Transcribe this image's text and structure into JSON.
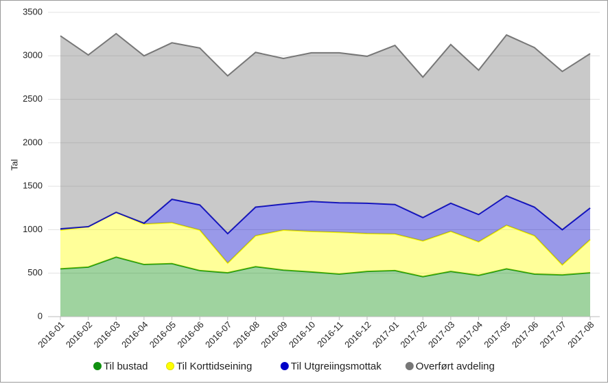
{
  "chart_data": {
    "type": "stacked-area",
    "y_label": "Tal",
    "categories": [
      "2016-01",
      "2016-02",
      "2016-03",
      "2016-04",
      "2016-05",
      "2016-06",
      "2016-07",
      "2016-08",
      "2016-09",
      "2016-10",
      "2016-11",
      "2016-12",
      "2017-01",
      "2017-02",
      "2017-03",
      "2017-04",
      "2017-05",
      "2017-06",
      "2017-07",
      "2017-08"
    ],
    "series": [
      {
        "name": "Til bustad",
        "color": "#109010",
        "values": [
          550,
          570,
          685,
          600,
          610,
          530,
          505,
          575,
          535,
          515,
          490,
          520,
          530,
          460,
          520,
          475,
          550,
          490,
          480,
          505
        ]
      },
      {
        "name": "Til Korttidseining",
        "color": "#ffff00",
        "values": [
          445,
          465,
          515,
          465,
          470,
          465,
          110,
          355,
          460,
          465,
          480,
          435,
          420,
          410,
          460,
          385,
          500,
          440,
          115,
          380
        ]
      },
      {
        "name": "Til Utgreiingsmottak",
        "color": "#0000c8",
        "values": [
          15,
          0,
          0,
          10,
          270,
          290,
          340,
          330,
          300,
          345,
          340,
          350,
          340,
          270,
          325,
          315,
          340,
          330,
          405,
          365
        ]
      },
      {
        "name": "Overført avdeling",
        "color": "#777777",
        "values": [
          2220,
          1975,
          2055,
          1925,
          1800,
          1805,
          1815,
          1780,
          1675,
          1710,
          1725,
          1690,
          1830,
          1615,
          1825,
          1660,
          1850,
          1835,
          1820,
          1775
        ]
      }
    ],
    "ylim": [
      0,
      3500
    ],
    "yticks": [
      0,
      500,
      1000,
      1500,
      2000,
      2500,
      3000,
      3500
    ],
    "grid": true
  }
}
